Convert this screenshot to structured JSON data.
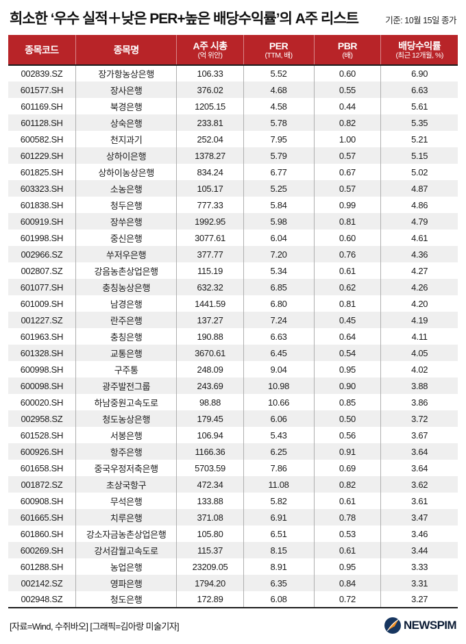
{
  "header": {
    "title": "희소한 ‘우수 실적＋낮은 PER+높은 배당수익률’의 A주 리스트",
    "date_note": "기준: 10월 15일 종가"
  },
  "chart_data": {
    "type": "table",
    "title": "희소한 ‘우수 실적＋낮은 PER+높은 배당수익률’의 A주 리스트",
    "columns": [
      {
        "label": "종목코드",
        "sublabel": ""
      },
      {
        "label": "종목명",
        "sublabel": ""
      },
      {
        "label": "A주 시총",
        "sublabel": "(억 위안)"
      },
      {
        "label": "PER",
        "sublabel": "(TTM, 배)"
      },
      {
        "label": "PBR",
        "sublabel": "(배)"
      },
      {
        "label": "배당수익률",
        "sublabel": "(최근 12개월, %)"
      }
    ],
    "rows": [
      [
        "002839.SZ",
        "장가항농상은행",
        "106.33",
        "5.52",
        "0.60",
        "6.90"
      ],
      [
        "601577.SH",
        "장사은행",
        "376.02",
        "4.68",
        "0.55",
        "6.63"
      ],
      [
        "601169.SH",
        "북경은행",
        "1205.15",
        "4.58",
        "0.44",
        "5.61"
      ],
      [
        "601128.SH",
        "상숙은행",
        "233.81",
        "5.78",
        "0.82",
        "5.35"
      ],
      [
        "600582.SH",
        "천지과기",
        "252.04",
        "7.95",
        "1.00",
        "5.21"
      ],
      [
        "601229.SH",
        "상하이은행",
        "1378.27",
        "5.79",
        "0.57",
        "5.15"
      ],
      [
        "601825.SH",
        "상하이농상은행",
        "834.24",
        "6.77",
        "0.67",
        "5.02"
      ],
      [
        "603323.SH",
        "소농은행",
        "105.17",
        "5.25",
        "0.57",
        "4.87"
      ],
      [
        "601838.SH",
        "청두은행",
        "777.33",
        "5.84",
        "0.99",
        "4.86"
      ],
      [
        "600919.SH",
        "장쑤은행",
        "1992.95",
        "5.98",
        "0.81",
        "4.79"
      ],
      [
        "601998.SH",
        "중신은행",
        "3077.61",
        "6.04",
        "0.60",
        "4.61"
      ],
      [
        "002966.SZ",
        "쑤저우은행",
        "377.77",
        "7.20",
        "0.76",
        "4.36"
      ],
      [
        "002807.SZ",
        "강음농촌상업은행",
        "115.19",
        "5.34",
        "0.61",
        "4.27"
      ],
      [
        "601077.SH",
        "충칭농상은행",
        "632.32",
        "6.85",
        "0.62",
        "4.26"
      ],
      [
        "601009.SH",
        "남경은행",
        "1441.59",
        "6.80",
        "0.81",
        "4.20"
      ],
      [
        "001227.SZ",
        "란주은행",
        "137.27",
        "7.24",
        "0.45",
        "4.19"
      ],
      [
        "601963.SH",
        "충칭은행",
        "190.88",
        "6.63",
        "0.64",
        "4.11"
      ],
      [
        "601328.SH",
        "교통은행",
        "3670.61",
        "6.45",
        "0.54",
        "4.05"
      ],
      [
        "600998.SH",
        "구주통",
        "248.09",
        "9.04",
        "0.95",
        "4.02"
      ],
      [
        "600098.SH",
        "광주발전그룹",
        "243.69",
        "10.98",
        "0.90",
        "3.88"
      ],
      [
        "600020.SH",
        "하남중원고속도로",
        "98.88",
        "10.66",
        "0.85",
        "3.86"
      ],
      [
        "002958.SZ",
        "청도농상은행",
        "179.45",
        "6.06",
        "0.50",
        "3.72"
      ],
      [
        "601528.SH",
        "서봉은행",
        "106.94",
        "5.43",
        "0.56",
        "3.67"
      ],
      [
        "600926.SH",
        "항주은행",
        "1166.36",
        "6.25",
        "0.91",
        "3.64"
      ],
      [
        "601658.SH",
        "중국우정저축은행",
        "5703.59",
        "7.86",
        "0.69",
        "3.64"
      ],
      [
        "001872.SZ",
        "초상국항구",
        "472.34",
        "11.08",
        "0.82",
        "3.62"
      ],
      [
        "600908.SH",
        "무석은행",
        "133.88",
        "5.82",
        "0.61",
        "3.61"
      ],
      [
        "601665.SH",
        "치루은행",
        "371.08",
        "6.91",
        "0.78",
        "3.47"
      ],
      [
        "601860.SH",
        "강소자금농촌상업은행",
        "105.80",
        "6.51",
        "0.53",
        "3.46"
      ],
      [
        "600269.SH",
        "강서감월고속도로",
        "115.37",
        "8.15",
        "0.61",
        "3.44"
      ],
      [
        "601288.SH",
        "농업은행",
        "23209.05",
        "8.91",
        "0.95",
        "3.33"
      ],
      [
        "002142.SZ",
        "영파은행",
        "1794.20",
        "6.35",
        "0.84",
        "3.31"
      ],
      [
        "002948.SZ",
        "청도은행",
        "172.89",
        "6.08",
        "0.72",
        "3.27"
      ]
    ]
  },
  "footer": {
    "source": "[자료=Wind, 수쥐바오] [그래픽=김아랑 미술기자]",
    "logo_text": "NEWSPIM"
  },
  "colors": {
    "header_red": "#b82428",
    "stripe_gray": "#efefef",
    "divider_gray": "#aeaeae",
    "line_dark": "#1a1a1a",
    "logo_navy": "#16355f",
    "logo_orange": "#f08c1e"
  }
}
